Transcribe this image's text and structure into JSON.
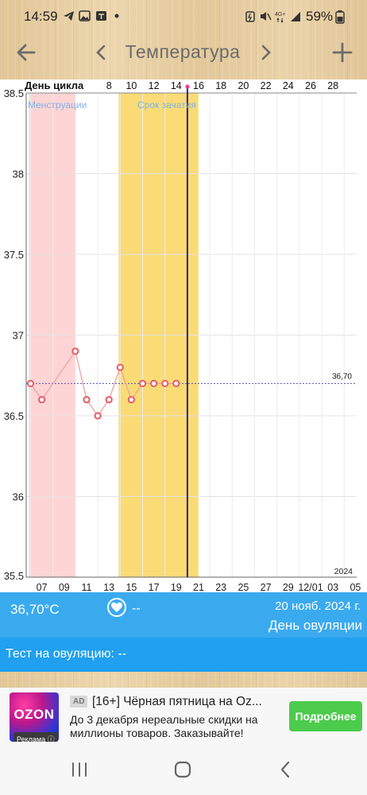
{
  "status_bar": {
    "time": "14:59",
    "battery_percent": "59%",
    "network": "4G+"
  },
  "toolbar": {
    "title": "Температура",
    "back_icon": "arrow-left-icon",
    "prev_icon": "chevron-left-icon",
    "next_icon": "chevron-right-icon",
    "add_icon": "plus-icon"
  },
  "chart": {
    "cycle_label": "День цикла",
    "menstruation_label": "Менструации",
    "conception_label": "Срок зачатия",
    "baseline_label": "36,70",
    "year_label": "2024",
    "colors": {
      "menstruation": "#ffd4d4",
      "conception": "#fadb76",
      "line": "#f0a0a0",
      "marker": "#e85a62",
      "baseline": "#4f4fc4",
      "cursor": "#2a2a66"
    }
  },
  "chart_data": {
    "type": "line",
    "title": "Температура",
    "xlabel": "День цикла",
    "ylabel": "",
    "ylim": [
      35.5,
      38.5
    ],
    "y_ticks": [
      "38.5",
      "38",
      "37.5",
      "37",
      "36.5",
      "36",
      "35.5"
    ],
    "cycle_day_ticks": [
      "8",
      "10",
      "12",
      "14",
      "16",
      "18",
      "20",
      "22",
      "24",
      "26",
      "28"
    ],
    "date_ticks": [
      "07",
      "09",
      "11",
      "13",
      "15",
      "17",
      "19",
      "21",
      "23",
      "25",
      "27",
      "29",
      "12/01",
      "03",
      "05"
    ],
    "baseline": 36.7,
    "current_cycle_day": 15,
    "menstruation_cycle_days": [
      1,
      5
    ],
    "conception_cycle_days": [
      9,
      14
    ],
    "series": [
      {
        "cycle_day": [
          1,
          2,
          5,
          6,
          7,
          8,
          9,
          10,
          11,
          12,
          13,
          14
        ],
        "dates": [
          "06",
          "07",
          "10",
          "11",
          "12",
          "13",
          "14",
          "15",
          "16",
          "17",
          "18",
          "19"
        ],
        "values": [
          36.7,
          36.6,
          36.9,
          36.6,
          36.5,
          36.6,
          36.8,
          36.6,
          36.7,
          36.7,
          36.7,
          36.7
        ]
      }
    ]
  },
  "info_panel": {
    "temperature": "36,70°C",
    "heart_value": "--",
    "date": "20 нояб. 2024 г.",
    "day_type": "День овуляции",
    "heart_icon": "heart-icon"
  },
  "test": {
    "label": "Тест на овуляцию: --"
  },
  "ad": {
    "logo_text": "OZON",
    "ad_mark": "Реклама",
    "badge": "AD",
    "title": "[16+] Чёрная пятница на Oz...",
    "description": "До 3 декабря нереальные скидки на миллионы товаров. Заказывайте!",
    "button_label": "Подробнее"
  },
  "nav": {
    "recents_icon": "recents-icon",
    "home_icon": "home-icon",
    "back_icon": "back-chevron-icon"
  }
}
